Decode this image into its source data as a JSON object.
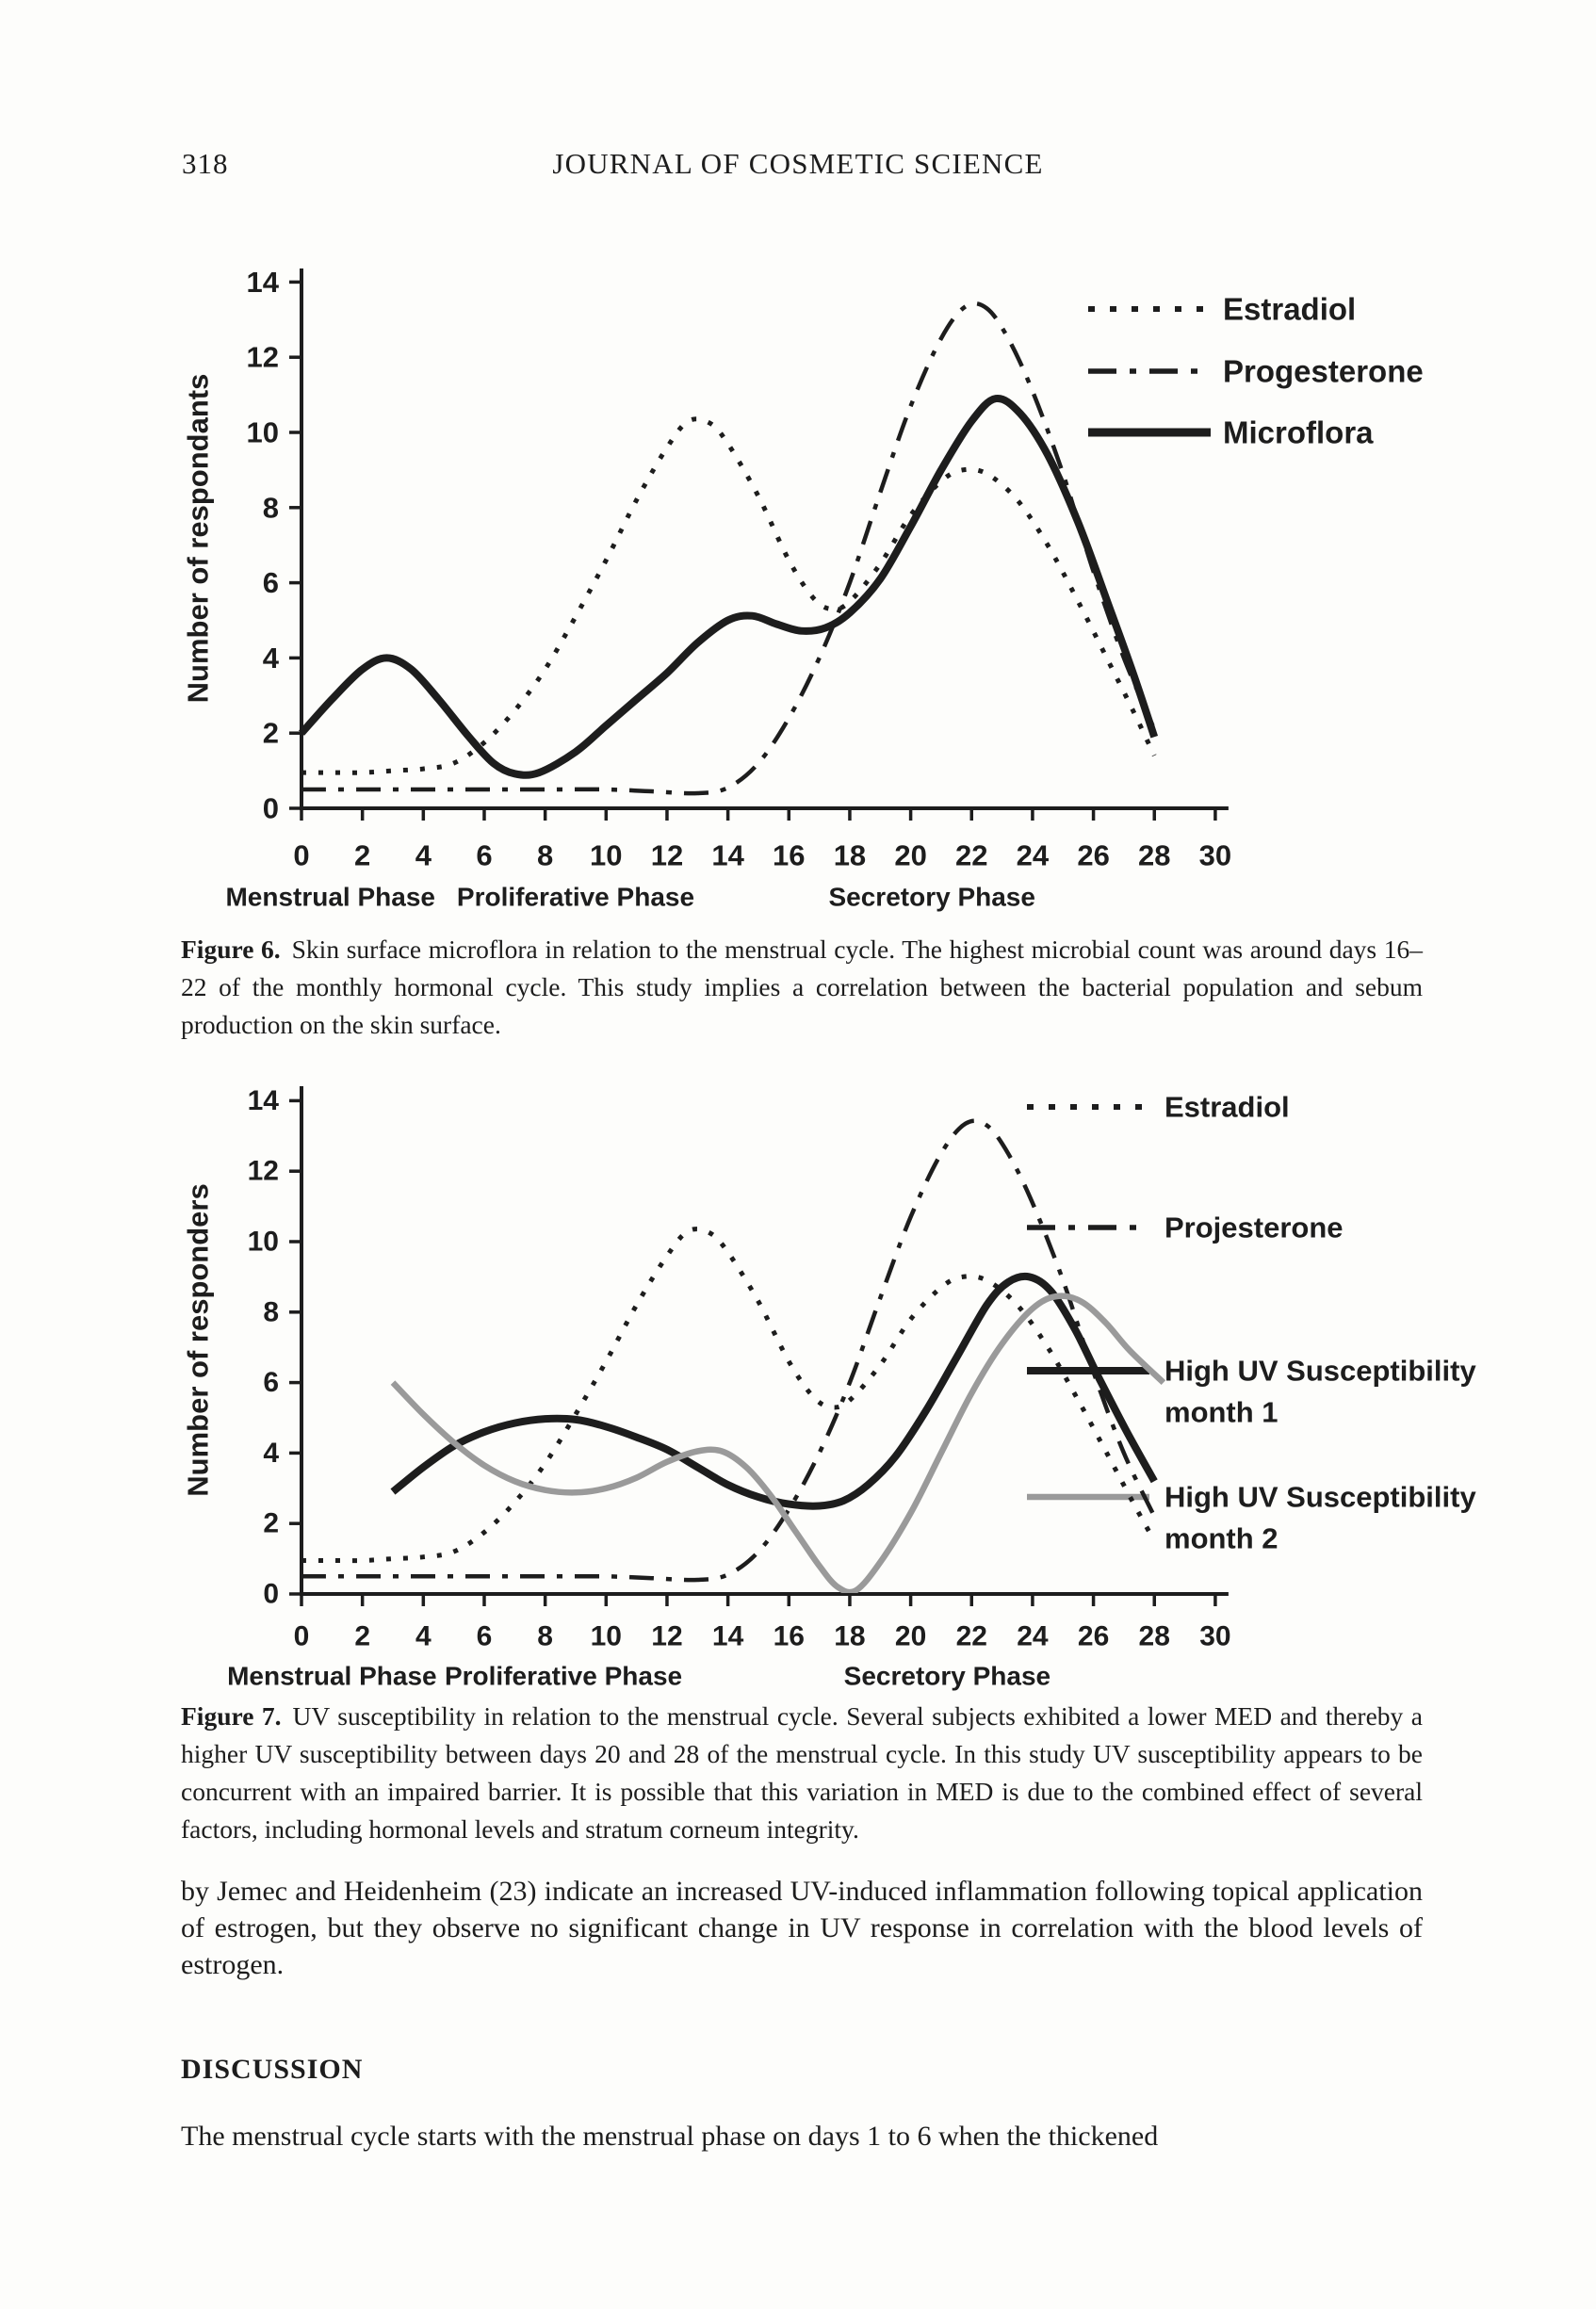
{
  "page": {
    "number": "318",
    "header": "JOURNAL OF COSMETIC SCIENCE"
  },
  "figure6_caption": {
    "label": "Figure 6.",
    "text": "Skin surface microflora in relation to the menstrual cycle. The highest microbial count was around days 16–22 of the monthly hormonal cycle. This study implies a correlation between the bacterial population and sebum production on the skin surface."
  },
  "figure7_caption": {
    "label": "Figure 7.",
    "text": "UV susceptibility in relation to the menstrual cycle. Several subjects exhibited a lower MED and thereby a higher UV susceptibility between days 20 and 28 of the menstrual cycle. In this study UV susceptibility appears to be concurrent with an impaired barrier. It is possible that this variation in MED is due to the combined effect of several factors, including hormonal levels and stratum corneum integrity."
  },
  "body_paragraph": "by Jemec and Heidenheim (23) indicate an increased UV-induced inflammation following topical application of estrogen, but they observe no significant change in UV response in correlation with the blood levels of estrogen.",
  "discussion": {
    "heading": "DISCUSSION",
    "first_line": "The menstrual cycle starts with the menstrual phase on days 1 to 6 when the thickened"
  },
  "colors": {
    "ink": "#1d1d1d",
    "gray_series": "#9a9a9a",
    "paper": "#fdfdfb"
  },
  "chart_data": [
    {
      "id": "figure6",
      "type": "line",
      "ylabel": "Number of respondants",
      "xlim": [
        0,
        30
      ],
      "ylim": [
        0,
        14
      ],
      "xticks": [
        0,
        2,
        4,
        6,
        8,
        10,
        12,
        14,
        16,
        18,
        20,
        22,
        24,
        26,
        28,
        30
      ],
      "yticks": [
        0,
        2,
        4,
        6,
        8,
        10,
        12,
        14
      ],
      "grid": false,
      "legend_position": "upper-right",
      "phases": [
        {
          "label": "Menstrual Phase",
          "x": 0.95
        },
        {
          "label": "Proliferative Phase",
          "x": 9.0
        },
        {
          "label": "Secretory Phase",
          "x": 20.7
        }
      ],
      "series": [
        {
          "name": "Estradiol",
          "style": "dotted",
          "color": "#1d1d1d",
          "points": [
            [
              0,
              0.95
            ],
            [
              1,
              0.95
            ],
            [
              2,
              0.95
            ],
            [
              3,
              1.0
            ],
            [
              4,
              1.05
            ],
            [
              5,
              1.2
            ],
            [
              6,
              1.75
            ],
            [
              7,
              2.6
            ],
            [
              8,
              3.7
            ],
            [
              9,
              5.1
            ],
            [
              10,
              6.6
            ],
            [
              11,
              8.2
            ],
            [
              12,
              9.6
            ],
            [
              12.7,
              10.3
            ],
            [
              13.4,
              10.25
            ],
            [
              14,
              9.7
            ],
            [
              15,
              8.3
            ],
            [
              16,
              6.6
            ],
            [
              16.8,
              5.6
            ],
            [
              17.4,
              5.3
            ],
            [
              18,
              5.5
            ],
            [
              19,
              6.5
            ],
            [
              20,
              7.8
            ],
            [
              21,
              8.7
            ],
            [
              21.7,
              9.0
            ],
            [
              22.5,
              8.9
            ],
            [
              23.5,
              8.2
            ],
            [
              24.5,
              7.0
            ],
            [
              25.5,
              5.5
            ],
            [
              26.5,
              3.9
            ],
            [
              27.3,
              2.6
            ],
            [
              28,
              1.4
            ]
          ]
        },
        {
          "name": "Progesterone",
          "style": "dashdot",
          "color": "#1d1d1d",
          "points": [
            [
              0,
              0.5
            ],
            [
              2,
              0.5
            ],
            [
              4,
              0.5
            ],
            [
              6,
              0.5
            ],
            [
              8,
              0.5
            ],
            [
              10,
              0.5
            ],
            [
              11.5,
              0.45
            ],
            [
              13,
              0.4
            ],
            [
              14,
              0.55
            ],
            [
              15,
              1.2
            ],
            [
              16,
              2.4
            ],
            [
              17,
              4.0
            ],
            [
              18,
              6.0
            ],
            [
              19,
              8.4
            ],
            [
              20,
              10.7
            ],
            [
              21,
              12.5
            ],
            [
              21.8,
              13.35
            ],
            [
              22.5,
              13.3
            ],
            [
              23.2,
              12.5
            ],
            [
              24,
              11.1
            ],
            [
              25,
              8.9
            ],
            [
              26,
              6.3
            ],
            [
              27,
              4.0
            ],
            [
              28,
              2.1
            ]
          ]
        },
        {
          "name": "Microflora",
          "style": "solid",
          "color": "#1d1d1d",
          "points": [
            [
              0,
              2.0
            ],
            [
              1,
              2.9
            ],
            [
              2,
              3.7
            ],
            [
              2.8,
              4.0
            ],
            [
              3.6,
              3.7
            ],
            [
              4.5,
              2.9
            ],
            [
              5.5,
              1.9
            ],
            [
              6.3,
              1.2
            ],
            [
              7,
              0.92
            ],
            [
              7.8,
              0.95
            ],
            [
              9,
              1.5
            ],
            [
              10,
              2.2
            ],
            [
              11,
              2.9
            ],
            [
              12,
              3.6
            ],
            [
              13,
              4.4
            ],
            [
              14,
              5.0
            ],
            [
              14.8,
              5.12
            ],
            [
              15.6,
              4.9
            ],
            [
              16.4,
              4.72
            ],
            [
              17.2,
              4.8
            ],
            [
              18,
              5.2
            ],
            [
              19,
              6.1
            ],
            [
              20,
              7.5
            ],
            [
              21,
              9.0
            ],
            [
              22,
              10.3
            ],
            [
              22.8,
              10.9
            ],
            [
              23.6,
              10.5
            ],
            [
              24.5,
              9.4
            ],
            [
              25.5,
              7.6
            ],
            [
              26.5,
              5.4
            ],
            [
              27.3,
              3.6
            ],
            [
              28,
              1.9
            ]
          ]
        }
      ]
    },
    {
      "id": "figure7",
      "type": "line",
      "ylabel": "Number of responders",
      "xlim": [
        0,
        30
      ],
      "ylim": [
        0,
        14
      ],
      "xticks": [
        0,
        2,
        4,
        6,
        8,
        10,
        12,
        14,
        16,
        18,
        20,
        22,
        24,
        26,
        28,
        30
      ],
      "yticks": [
        0,
        2,
        4,
        6,
        8,
        10,
        12,
        14
      ],
      "grid": false,
      "legend_position": "upper-right",
      "phases": [
        {
          "label": "Menstrual Phase",
          "x": 1.0
        },
        {
          "label": "Proliferative Phase",
          "x": 8.6
        },
        {
          "label": "Secretory Phase",
          "x": 21.2
        }
      ],
      "series": [
        {
          "name": "Estradiol",
          "style": "dotted",
          "color": "#1d1d1d",
          "points": [
            [
              0,
              0.95
            ],
            [
              1,
              0.95
            ],
            [
              2,
              0.95
            ],
            [
              3,
              1.0
            ],
            [
              4,
              1.05
            ],
            [
              5,
              1.2
            ],
            [
              6,
              1.75
            ],
            [
              7,
              2.6
            ],
            [
              8,
              3.7
            ],
            [
              9,
              5.1
            ],
            [
              10,
              6.6
            ],
            [
              11,
              8.2
            ],
            [
              12,
              9.6
            ],
            [
              12.7,
              10.3
            ],
            [
              13.4,
              10.25
            ],
            [
              14,
              9.7
            ],
            [
              15,
              8.3
            ],
            [
              16,
              6.6
            ],
            [
              16.8,
              5.6
            ],
            [
              17.4,
              5.3
            ],
            [
              18,
              5.5
            ],
            [
              19,
              6.5
            ],
            [
              20,
              7.8
            ],
            [
              21,
              8.7
            ],
            [
              21.7,
              9.0
            ],
            [
              22.5,
              8.9
            ],
            [
              23.5,
              8.2
            ],
            [
              24.5,
              7.0
            ],
            [
              25.5,
              5.5
            ],
            [
              26.5,
              3.9
            ],
            [
              27.3,
              2.6
            ],
            [
              28,
              1.5
            ]
          ]
        },
        {
          "name": "Projesterone",
          "style": "dashdot",
          "color": "#1d1d1d",
          "points": [
            [
              0,
              0.5
            ],
            [
              2,
              0.5
            ],
            [
              4,
              0.5
            ],
            [
              6,
              0.5
            ],
            [
              8,
              0.5
            ],
            [
              10,
              0.5
            ],
            [
              11.5,
              0.45
            ],
            [
              13,
              0.4
            ],
            [
              14,
              0.55
            ],
            [
              15,
              1.2
            ],
            [
              16,
              2.4
            ],
            [
              17,
              4.0
            ],
            [
              18,
              6.0
            ],
            [
              19,
              8.4
            ],
            [
              20,
              10.7
            ],
            [
              21,
              12.5
            ],
            [
              21.8,
              13.35
            ],
            [
              22.5,
              13.3
            ],
            [
              23.2,
              12.5
            ],
            [
              24,
              11.1
            ],
            [
              25,
              8.9
            ],
            [
              26,
              6.3
            ],
            [
              27,
              4.0
            ],
            [
              28,
              2.2
            ]
          ]
        },
        {
          "name": "High UV Susceptibility month 1",
          "legend_lines": [
            "High UV Susceptibility",
            "month 1"
          ],
          "style": "solid",
          "color": "#1d1d1d",
          "points": [
            [
              3,
              2.9
            ],
            [
              4,
              3.6
            ],
            [
              5,
              4.2
            ],
            [
              6,
              4.6
            ],
            [
              7,
              4.85
            ],
            [
              8,
              4.97
            ],
            [
              9,
              4.95
            ],
            [
              10,
              4.75
            ],
            [
              11,
              4.45
            ],
            [
              12,
              4.1
            ],
            [
              13,
              3.6
            ],
            [
              14,
              3.1
            ],
            [
              15,
              2.75
            ],
            [
              16,
              2.55
            ],
            [
              17,
              2.5
            ],
            [
              17.8,
              2.65
            ],
            [
              18.6,
              3.1
            ],
            [
              19.5,
              3.9
            ],
            [
              20.5,
              5.2
            ],
            [
              21.5,
              6.7
            ],
            [
              22.5,
              8.2
            ],
            [
              23.2,
              8.85
            ],
            [
              23.9,
              9.0
            ],
            [
              24.6,
              8.6
            ],
            [
              25.4,
              7.5
            ],
            [
              26.2,
              6.1
            ],
            [
              27.1,
              4.6
            ],
            [
              28,
              3.2
            ]
          ]
        },
        {
          "name": "High UV Susceptibility month 2",
          "legend_lines": [
            "High UV Susceptibility",
            "month 2"
          ],
          "style": "solid",
          "color": "#9a9a9a",
          "points": [
            [
              3,
              6.0
            ],
            [
              4,
              5.1
            ],
            [
              5,
              4.3
            ],
            [
              6,
              3.65
            ],
            [
              7,
              3.2
            ],
            [
              8,
              2.95
            ],
            [
              9,
              2.88
            ],
            [
              10,
              3.0
            ],
            [
              11,
              3.3
            ],
            [
              12,
              3.75
            ],
            [
              13,
              4.05
            ],
            [
              13.8,
              4.05
            ],
            [
              14.6,
              3.6
            ],
            [
              15.4,
              2.8
            ],
            [
              16.2,
              1.8
            ],
            [
              17,
              0.8
            ],
            [
              17.6,
              0.2
            ],
            [
              18.2,
              0.1
            ],
            [
              19,
              0.9
            ],
            [
              20,
              2.3
            ],
            [
              21,
              4.0
            ],
            [
              22,
              5.7
            ],
            [
              23,
              7.1
            ],
            [
              24,
              8.1
            ],
            [
              24.8,
              8.45
            ],
            [
              25.6,
              8.3
            ],
            [
              26.4,
              7.7
            ],
            [
              27.2,
              6.9
            ],
            [
              28.3,
              6.0
            ]
          ]
        }
      ]
    }
  ]
}
